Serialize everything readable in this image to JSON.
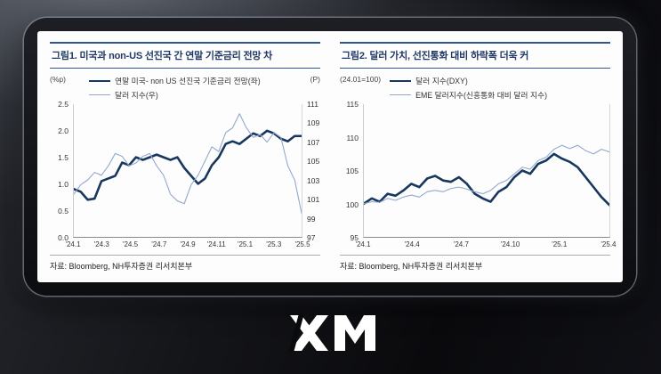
{
  "page": {
    "logo": "XM"
  },
  "chart_data": [
    {
      "type": "line",
      "title": "그림1. 미국과 non-US 선진국 간 연말 기준금리 전망 차",
      "unit_left": "(%p)",
      "unit_right": "(P)",
      "source": "자료: Bloomberg, NH투자증권 리서치본부",
      "x_tick_labels": [
        "'24.1",
        "'24.3",
        "'24.5",
        "'24.7",
        "'24.9",
        "'24.11",
        "'25.1",
        "'25.3",
        "'25.5"
      ],
      "y_left": {
        "min": 0.0,
        "max": 2.5,
        "ticks": [
          2.5,
          2.0,
          1.5,
          1.0,
          0.5,
          0.0
        ],
        "tick_labels": [
          "2.5",
          "2.0",
          "1.5",
          "1.0",
          "0.5",
          "0.0"
        ]
      },
      "y_right": {
        "min": 97,
        "max": 111,
        "ticks": [
          111,
          109,
          107,
          105,
          103,
          101,
          99,
          97
        ],
        "tick_labels": [
          "111",
          "109",
          "107",
          "105",
          "103",
          "101",
          "99",
          "97"
        ]
      },
      "grid": false,
      "legend_position": "top-left",
      "series": [
        {
          "name": "연말 미국- non US 선진국 기준금리 전망(좌)",
          "axis": "left",
          "color": "#17375E",
          "width": 2.6,
          "values": [
            0.9,
            0.85,
            0.7,
            0.72,
            1.05,
            1.1,
            1.15,
            1.4,
            1.35,
            1.5,
            1.45,
            1.5,
            1.55,
            1.5,
            1.45,
            1.5,
            1.3,
            1.15,
            1.0,
            1.1,
            1.35,
            1.5,
            1.75,
            1.8,
            1.75,
            1.85,
            1.95,
            1.9,
            2.0,
            1.95,
            1.85,
            1.8,
            1.9,
            1.9
          ]
        },
        {
          "name": "달러 지수(우)",
          "axis": "right",
          "color": "#93A9CD",
          "width": 1.1,
          "values": [
            101.5,
            102.5,
            103.0,
            103.8,
            103.5,
            104.5,
            105.8,
            105.5,
            104.5,
            104.8,
            105.5,
            105.8,
            104.5,
            103.5,
            101.5,
            100.8,
            100.5,
            102.5,
            103.5,
            105.0,
            106.5,
            106.0,
            108.0,
            108.5,
            110.0,
            108.5,
            107.5,
            107.8,
            107.0,
            108.0,
            107.5,
            104.5,
            103.0,
            99.5
          ]
        }
      ]
    },
    {
      "type": "line",
      "title": "그림2. 달러 가치, 선진통화 대비 하락폭 더욱 커",
      "unit_left": "(24.01=100)",
      "unit_right": "",
      "source": "자료: Bloomberg, NH투자증권 리서치본부",
      "x_tick_labels": [
        "'24.1",
        "'24.4",
        "'24.7",
        "'24.10",
        "'25.1",
        "'25.4"
      ],
      "y_left": {
        "min": 95,
        "max": 115,
        "ticks": [
          115,
          110,
          105,
          100,
          95
        ],
        "tick_labels": [
          "115",
          "110",
          "105",
          "100",
          "95"
        ]
      },
      "grid": false,
      "legend_position": "top-left",
      "series": [
        {
          "name": "달러 지수(DXY)",
          "axis": "left",
          "color": "#17375E",
          "width": 2.6,
          "values": [
            100.0,
            100.8,
            100.3,
            101.5,
            101.2,
            102.0,
            103.0,
            102.5,
            103.8,
            104.2,
            103.5,
            103.3,
            104.0,
            103.0,
            101.5,
            100.8,
            100.3,
            101.8,
            102.5,
            104.0,
            105.0,
            104.5,
            106.0,
            106.5,
            107.5,
            106.8,
            106.3,
            105.5,
            104.0,
            102.5,
            101.0,
            99.8
          ]
        },
        {
          "name": "EME 달러지수(신흥통화 대비 달러 지수)",
          "axis": "left",
          "color": "#93A9CD",
          "width": 1.1,
          "values": [
            100.0,
            100.3,
            100.2,
            100.8,
            100.5,
            101.0,
            101.3,
            101.0,
            101.8,
            102.0,
            101.8,
            102.3,
            102.5,
            102.2,
            101.8,
            101.5,
            102.0,
            103.0,
            103.5,
            104.5,
            105.5,
            105.2,
            106.5,
            107.0,
            108.2,
            108.8,
            108.3,
            108.8,
            108.0,
            107.5,
            108.2,
            107.8
          ]
        }
      ]
    }
  ]
}
